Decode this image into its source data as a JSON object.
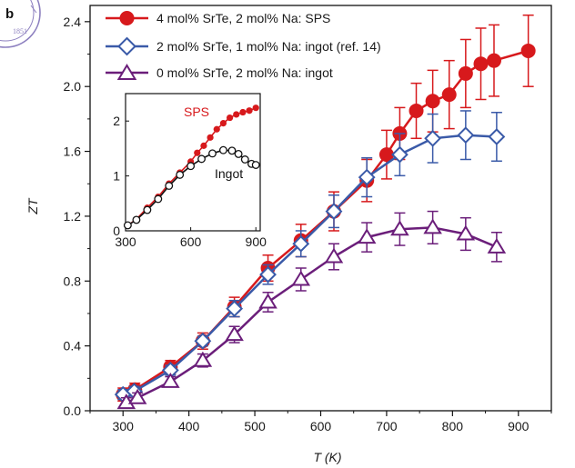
{
  "panel_label": "b",
  "colors": {
    "sps": "#d7191c",
    "ingot_ref": "#3a5aa8",
    "ingot_0": "#6b1e7a",
    "inset_ingot": "#111111",
    "seal": "#8c7fbf"
  },
  "chart_data": [
    {
      "type": "line",
      "xlabel": "T (K)",
      "ylabel": "ZT",
      "xlim": [
        250,
        950
      ],
      "ylim": [
        0,
        2.5
      ],
      "x_ticks": [
        "300",
        "400",
        "500",
        "600",
        "700",
        "800",
        "900"
      ],
      "y_ticks": [
        "0.0",
        "0.4",
        "0.8",
        "1.2",
        "1.6",
        "2.0",
        "2.4"
      ],
      "legend_position": "top-left",
      "series": [
        {
          "name": "4 mol% SrTe, 2 mol% Na: SPS",
          "marker": "filled-circle",
          "x": [
            300,
            318,
            372,
            421,
            469,
            520,
            570,
            620,
            670,
            700,
            720,
            745,
            770,
            795,
            820,
            843,
            863,
            915
          ],
          "y": [
            0.1,
            0.13,
            0.27,
            0.43,
            0.64,
            0.88,
            1.05,
            1.23,
            1.42,
            1.58,
            1.71,
            1.85,
            1.91,
            1.95,
            2.08,
            2.14,
            2.16,
            2.22
          ],
          "err": [
            0.04,
            0.04,
            0.04,
            0.05,
            0.06,
            0.08,
            0.1,
            0.12,
            0.13,
            0.15,
            0.16,
            0.17,
            0.19,
            0.21,
            0.21,
            0.22,
            0.22,
            0.22
          ]
        },
        {
          "name": "2 mol% SrTe, 1 mol% Na: ingot (ref. 14)",
          "marker": "open-diamond",
          "x": [
            300,
            317,
            372,
            421,
            469,
            520,
            570,
            620,
            670,
            720,
            770,
            820,
            867
          ],
          "y": [
            0.1,
            0.12,
            0.25,
            0.43,
            0.63,
            0.84,
            1.03,
            1.23,
            1.44,
            1.58,
            1.68,
            1.7,
            1.69
          ],
          "err": [
            0.03,
            0.03,
            0.03,
            0.03,
            0.05,
            0.06,
            0.08,
            0.1,
            0.12,
            0.13,
            0.15,
            0.15,
            0.15
          ]
        },
        {
          "name": "0 mol% SrTe, 2 mol% Na: ingot",
          "marker": "open-triangle",
          "x": [
            305,
            322,
            372,
            421,
            469,
            520,
            570,
            620,
            670,
            720,
            770,
            820,
            867
          ],
          "y": [
            0.05,
            0.08,
            0.18,
            0.31,
            0.47,
            0.67,
            0.81,
            0.95,
            1.07,
            1.12,
            1.13,
            1.09,
            1.01
          ],
          "err": [
            0.03,
            0.03,
            0.03,
            0.04,
            0.05,
            0.06,
            0.07,
            0.08,
            0.09,
            0.1,
            0.1,
            0.1,
            0.09
          ]
        }
      ]
    },
    {
      "type": "line",
      "xlim": [
        300,
        920
      ],
      "ylim": [
        0,
        2.5
      ],
      "x_ticks": [
        "300",
        "600",
        "900"
      ],
      "y_ticks": [
        "0",
        "1",
        "2"
      ],
      "annotations": [
        "SPS",
        "Ingot"
      ],
      "series": [
        {
          "name": "SPS",
          "marker": "filled-circle",
          "x": [
            310,
            350,
            400,
            450,
            500,
            550,
            600,
            630,
            660,
            690,
            720,
            750,
            780,
            810,
            840,
            870,
            900
          ],
          "y": [
            0.1,
            0.21,
            0.42,
            0.62,
            0.86,
            1.06,
            1.26,
            1.42,
            1.55,
            1.7,
            1.85,
            1.96,
            2.06,
            2.12,
            2.16,
            2.19,
            2.24
          ]
        },
        {
          "name": "Ingot",
          "marker": "open-circle",
          "x": [
            310,
            350,
            400,
            450,
            500,
            550,
            600,
            650,
            700,
            750,
            790,
            820,
            850,
            880,
            900
          ],
          "y": [
            0.1,
            0.2,
            0.38,
            0.58,
            0.82,
            1.02,
            1.18,
            1.31,
            1.41,
            1.47,
            1.46,
            1.4,
            1.3,
            1.22,
            1.2
          ]
        }
      ]
    }
  ]
}
